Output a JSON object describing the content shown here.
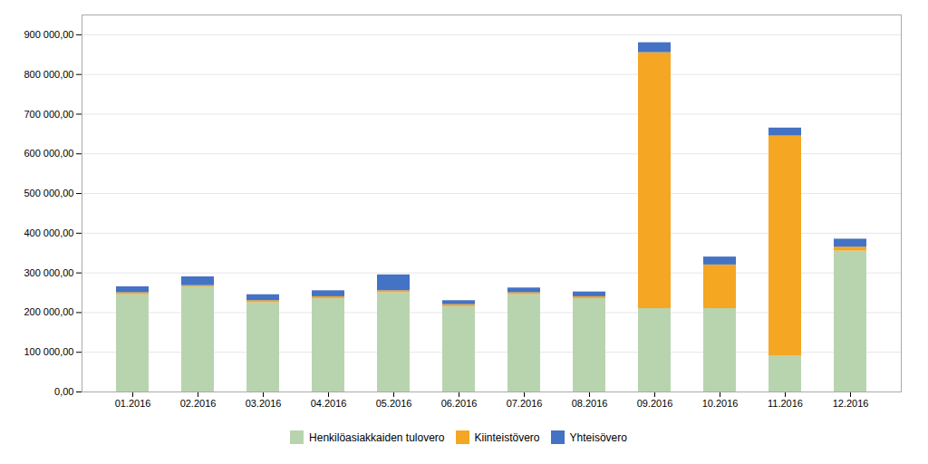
{
  "chart_data": {
    "type": "bar",
    "stacked": true,
    "categories": [
      "01.2016",
      "02.2016",
      "03.2016",
      "04.2016",
      "05.2016",
      "06.2016",
      "07.2016",
      "08.2016",
      "09.2016",
      "10.2016",
      "11.2016",
      "12.2016"
    ],
    "series": [
      {
        "name": "Henkilöasiakkaiden tulovero",
        "color": "#b8d4af",
        "values": [
          245000,
          265000,
          225000,
          235000,
          250000,
          215000,
          245000,
          235000,
          210000,
          210000,
          90000,
          355000
        ]
      },
      {
        "name": "Kiinteistövero",
        "color": "#f5a623",
        "values": [
          5000,
          3000,
          5000,
          5000,
          5000,
          5000,
          5000,
          5000,
          645000,
          110000,
          555000,
          10000
        ]
      },
      {
        "name": "Yhteisövero",
        "color": "#4472c4",
        "values": [
          15000,
          22000,
          15000,
          15000,
          40000,
          10000,
          12000,
          12000,
          25000,
          20000,
          20000,
          20000
        ]
      }
    ],
    "ylim": [
      0,
      950000
    ],
    "yticks": [
      {
        "value": 0,
        "label": "0,00"
      },
      {
        "value": 100000,
        "label": "100 000,00"
      },
      {
        "value": 200000,
        "label": "200 000,00"
      },
      {
        "value": 300000,
        "label": "300 000,00"
      },
      {
        "value": 400000,
        "label": "400 000,00"
      },
      {
        "value": 500000,
        "label": "500 000,00"
      },
      {
        "value": 600000,
        "label": "600 000,00"
      },
      {
        "value": 700000,
        "label": "700 000,00"
      },
      {
        "value": 800000,
        "label": "800 000,00"
      },
      {
        "value": 900000,
        "label": "900 000,00"
      }
    ],
    "grid": true,
    "legend": "bottom"
  }
}
